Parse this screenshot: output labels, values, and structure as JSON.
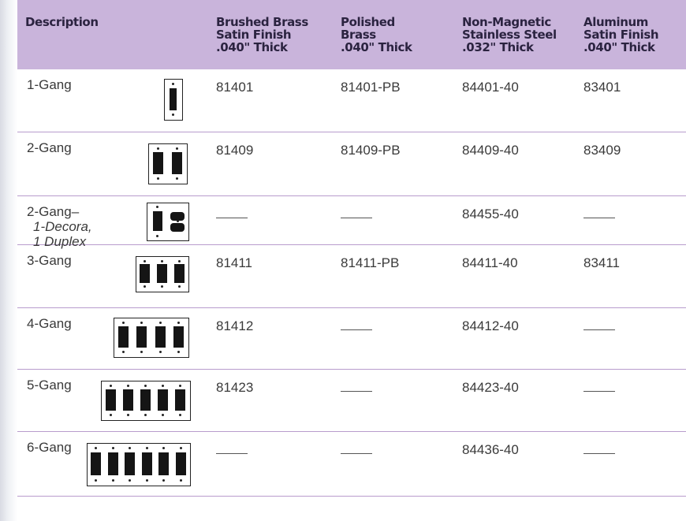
{
  "headers": [
    {
      "lines": [
        "Description"
      ]
    },
    {
      "lines": [
        "Brushed Brass",
        "Satin Finish",
        ".040\" Thick"
      ]
    },
    {
      "lines": [
        "Polished",
        "Brass",
        ".040\" Thick"
      ]
    },
    {
      "lines": [
        "Non-Magnetic",
        "Stainless Steel",
        ".032\" Thick"
      ]
    },
    {
      "lines": [
        "Aluminum",
        "Satin Finish",
        ".040\" Thick"
      ]
    }
  ],
  "rows": [
    {
      "desc": "1-Gang",
      "icon": "wallplate-1-gang-icon",
      "gangs": 1,
      "values": [
        "81401",
        "81401-PB",
        "84401-40",
        "83401"
      ]
    },
    {
      "desc": "2-Gang",
      "icon": "wallplate-2-gang-icon",
      "gangs": 2,
      "values": [
        "81409",
        "81409-PB",
        "84409-40",
        "83409"
      ]
    },
    {
      "desc": "2-Gang–",
      "desc_sub": [
        "1-Decora,",
        "1 Duplex"
      ],
      "icon": "wallplate-decora-duplex-icon",
      "gangs": 2,
      "values": [
        "",
        "",
        "84455-40",
        ""
      ]
    },
    {
      "desc": "3-Gang",
      "icon": "wallplate-3-gang-icon",
      "gangs": 3,
      "values": [
        "81411",
        "81411-PB",
        "84411-40",
        "83411"
      ]
    },
    {
      "desc": "4-Gang",
      "icon": "wallplate-4-gang-icon",
      "gangs": 4,
      "values": [
        "81412",
        "",
        "84412-40",
        ""
      ]
    },
    {
      "desc": "5-Gang",
      "icon": "wallplate-5-gang-icon",
      "gangs": 5,
      "values": [
        "81423",
        "",
        "84423-40",
        ""
      ]
    },
    {
      "desc": "6-Gang",
      "icon": "wallplate-6-gang-icon",
      "gangs": 6,
      "values": [
        "",
        "",
        "84436-40",
        ""
      ]
    }
  ],
  "colors": {
    "header_bg": "#c9b4db",
    "row_rule": "#b89ccd",
    "text": "#3a3a3a"
  }
}
